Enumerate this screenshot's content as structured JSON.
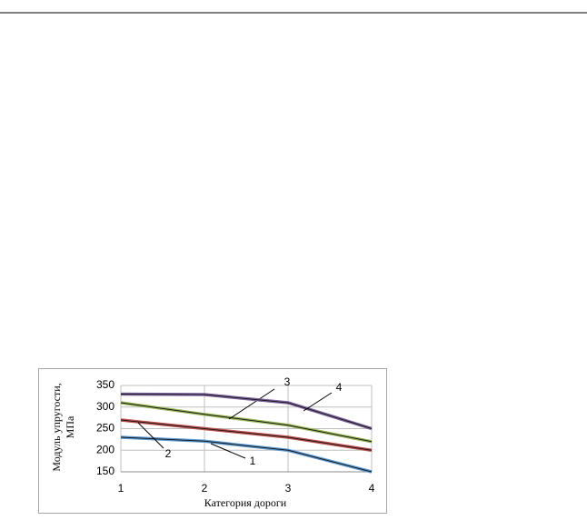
{
  "chart_data": {
    "type": "line",
    "y_label": [
      "Модуль упругости,",
      "МПа"
    ],
    "x_label": "Категория дороги",
    "x": [
      1,
      2,
      3,
      4
    ],
    "xlim": [
      1,
      4
    ],
    "xticks": [
      1,
      2,
      3,
      4
    ],
    "ylim": [
      150,
      350
    ],
    "yticks": [
      150,
      200,
      250,
      300,
      350
    ],
    "grid": true,
    "series": [
      {
        "name": "1",
        "color": "#5b9bd5",
        "values": [
          230,
          221,
          200,
          150
        ]
      },
      {
        "name": "2",
        "color": "#c0504d",
        "values": [
          270,
          250,
          230,
          200
        ]
      },
      {
        "name": "3",
        "color": "#9bbb59",
        "values": [
          310,
          283,
          258,
          220
        ]
      },
      {
        "name": "4",
        "color": "#8064a2",
        "values": [
          330,
          329,
          310,
          250
        ]
      }
    ]
  }
}
